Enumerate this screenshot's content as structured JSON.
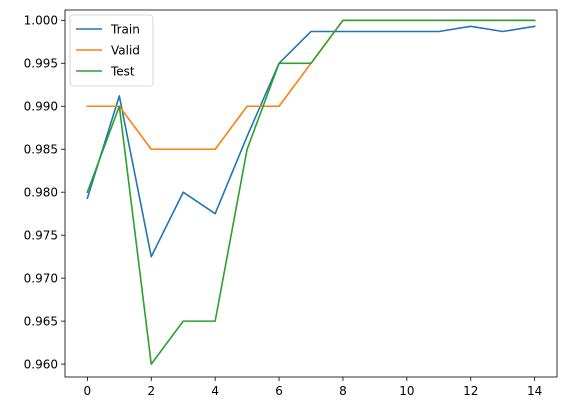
{
  "chart_data": {
    "type": "line",
    "title": "",
    "xlabel": "",
    "ylabel": "",
    "x": [
      0,
      1,
      2,
      3,
      4,
      5,
      6,
      7,
      8,
      9,
      10,
      11,
      12,
      13,
      14
    ],
    "xlim": [
      -0.7,
      14.7
    ],
    "ylim": [
      0.9585,
      1.0012
    ],
    "xticks": [
      0,
      2,
      4,
      6,
      8,
      10,
      12,
      14
    ],
    "yticks": [
      0.96,
      0.965,
      0.97,
      0.975,
      0.98,
      0.985,
      0.99,
      0.995,
      1.0
    ],
    "xtick_labels": [
      "0",
      "2",
      "4",
      "6",
      "8",
      "10",
      "12",
      "14"
    ],
    "ytick_labels": [
      "0.960",
      "0.965",
      "0.970",
      "0.975",
      "0.980",
      "0.985",
      "0.990",
      "0.995",
      "1.000"
    ],
    "grid": false,
    "legend_position": "top-left",
    "series": [
      {
        "name": "Train",
        "color": "#1f77b4",
        "values": [
          0.9793,
          0.9912,
          0.9725,
          0.98,
          0.9775,
          0.9865,
          0.995,
          0.9987,
          0.9987,
          0.9987,
          0.9987,
          0.9987,
          0.9993,
          0.9987,
          0.9993
        ]
      },
      {
        "name": "Valid",
        "color": "#ff7f0e",
        "values": [
          0.99,
          0.99,
          0.985,
          0.985,
          0.985,
          0.99,
          0.99,
          0.995,
          1.0,
          1.0,
          1.0,
          1.0,
          1.0,
          1.0,
          1.0
        ]
      },
      {
        "name": "Test",
        "color": "#2ca02c",
        "values": [
          0.98,
          0.99,
          0.96,
          0.965,
          0.965,
          0.985,
          0.995,
          0.995,
          1.0,
          1.0,
          1.0,
          1.0,
          1.0,
          1.0,
          1.0
        ]
      }
    ]
  }
}
